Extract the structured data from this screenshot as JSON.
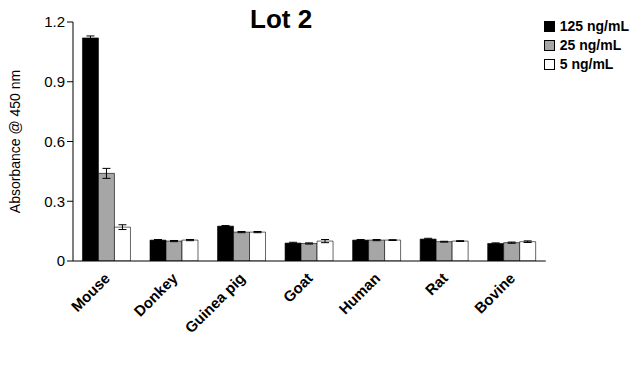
{
  "chart_data": {
    "type": "bar",
    "title": "Lot 2",
    "y_label": "Absorbance @ 450 nm",
    "categories": [
      "Mouse",
      "Donkey",
      "Guinea pig",
      "Goat",
      "Human",
      "Rat",
      "Bovine"
    ],
    "series": [
      {
        "name": "125 ng/mL",
        "color": "#000000",
        "values": [
          1.12,
          0.105,
          0.175,
          0.09,
          0.105,
          0.11,
          0.088
        ],
        "errors": [
          0.01,
          0.003,
          0.003,
          0.004,
          0.003,
          0.004,
          0.003
        ]
      },
      {
        "name": "25 ng/mL",
        "color": "#a6a6a6",
        "values": [
          0.44,
          0.1,
          0.145,
          0.088,
          0.105,
          0.097,
          0.092
        ],
        "errors": [
          0.025,
          0.003,
          0.003,
          0.003,
          0.003,
          0.002,
          0.003
        ]
      },
      {
        "name": "5 ng/mL",
        "color": "#ffffff",
        "values": [
          0.17,
          0.105,
          0.145,
          0.1,
          0.105,
          0.1,
          0.097
        ],
        "errors": [
          0.012,
          0.003,
          0.003,
          0.008,
          0.002,
          0.002,
          0.004
        ]
      }
    ],
    "ylim": [
      0,
      1.2
    ],
    "yticks": [
      0,
      0.3,
      0.6,
      0.9,
      1.2
    ],
    "grid": false,
    "legend": "upper right"
  }
}
